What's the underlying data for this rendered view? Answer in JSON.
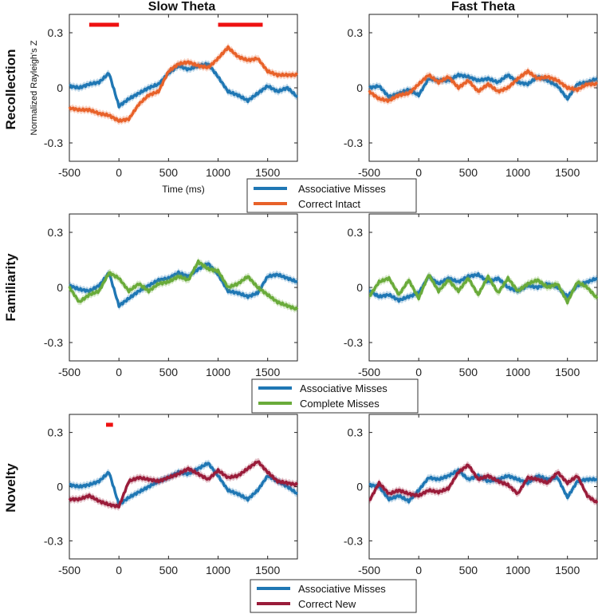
{
  "figure": {
    "column_titles": [
      "Slow Theta",
      "Fast Theta"
    ],
    "row_labels": [
      "Recollection",
      "Familiarity",
      "Novelty"
    ],
    "ylabel": "Normalized Rayleigh's Z",
    "xlabel": "Time (ms)"
  },
  "colors": {
    "associative_misses": "#1f77b4",
    "correct_intact": "#e8622a",
    "complete_misses": "#6aab3a",
    "correct_new": "#9a1c3a",
    "significance": "#ee1111"
  },
  "legends": [
    {
      "entries": [
        {
          "label": "Associative Misses",
          "color": "#1f77b4"
        },
        {
          "label": "Correct Intact",
          "color": "#e8622a"
        }
      ]
    },
    {
      "entries": [
        {
          "label": "Associative Misses",
          "color": "#1f77b4"
        },
        {
          "label": "Complete Misses",
          "color": "#6aab3a"
        }
      ]
    },
    {
      "entries": [
        {
          "label": "Associative Misses",
          "color": "#1f77b4"
        },
        {
          "label": "Correct New",
          "color": "#9a1c3a"
        }
      ]
    }
  ],
  "chart_data": [
    {
      "type": "line",
      "row": "Recollection",
      "column": "Slow Theta",
      "xlim": [
        -500,
        1800
      ],
      "ylim": [
        -0.4,
        0.4
      ],
      "xticks": [
        -500,
        0,
        500,
        1000,
        1500
      ],
      "yticks": [
        -0.3,
        0,
        0.3
      ],
      "ytick_labels": [
        "-0.3",
        "0",
        "0.3"
      ],
      "significance_bars": [
        [
          -300,
          0
        ],
        [
          1000,
          1450
        ]
      ],
      "series": [
        {
          "name": "Associative Misses",
          "color": "#1f77b4",
          "x": [
            -500,
            -400,
            -300,
            -200,
            -100,
            0,
            100,
            200,
            300,
            400,
            500,
            600,
            700,
            800,
            900,
            1000,
            1100,
            1200,
            1300,
            1400,
            1500,
            1600,
            1700,
            1800
          ],
          "y": [
            0.01,
            0.0,
            0.02,
            0.03,
            0.08,
            -0.1,
            -0.06,
            -0.03,
            0.0,
            0.02,
            0.08,
            0.12,
            0.1,
            0.12,
            0.13,
            0.06,
            -0.02,
            -0.04,
            -0.07,
            -0.03,
            0.01,
            -0.02,
            0.0,
            -0.05
          ]
        },
        {
          "name": "Correct Intact",
          "color": "#e8622a",
          "x": [
            -500,
            -400,
            -300,
            -200,
            -100,
            0,
            100,
            200,
            300,
            400,
            500,
            600,
            700,
            800,
            900,
            1000,
            1100,
            1200,
            1300,
            1400,
            1500,
            1600,
            1700,
            1800
          ],
          "y": [
            -0.11,
            -0.12,
            -0.12,
            -0.14,
            -0.15,
            -0.18,
            -0.17,
            -0.09,
            -0.04,
            -0.02,
            0.09,
            0.13,
            0.14,
            0.12,
            0.11,
            0.16,
            0.22,
            0.17,
            0.15,
            0.16,
            0.09,
            0.07,
            0.07,
            0.07
          ]
        }
      ]
    },
    {
      "type": "line",
      "row": "Recollection",
      "column": "Fast Theta",
      "xlim": [
        -500,
        1800
      ],
      "ylim": [
        -0.4,
        0.4
      ],
      "xticks": [
        -500,
        0,
        500,
        1000,
        1500
      ],
      "yticks": [
        -0.3,
        0,
        0.3
      ],
      "ytick_labels": [
        "-0.3",
        "0",
        "0.3"
      ],
      "significance_bars": [],
      "series": [
        {
          "name": "Associative Misses",
          "color": "#1f77b4",
          "x": [
            -500,
            -400,
            -300,
            -200,
            -100,
            0,
            100,
            200,
            300,
            400,
            500,
            600,
            700,
            800,
            900,
            1000,
            1100,
            1200,
            1300,
            1400,
            1500,
            1600,
            1700,
            1800
          ],
          "y": [
            0.0,
            0.01,
            -0.05,
            -0.03,
            -0.01,
            -0.04,
            0.05,
            0.04,
            0.04,
            0.07,
            0.06,
            0.04,
            0.05,
            0.03,
            0.07,
            0.03,
            0.02,
            0.06,
            0.04,
            0.01,
            -0.06,
            0.02,
            0.03,
            0.05
          ]
        },
        {
          "name": "Correct Intact",
          "color": "#e8622a",
          "x": [
            -500,
            -400,
            -300,
            -200,
            -100,
            0,
            100,
            200,
            300,
            400,
            500,
            600,
            700,
            800,
            900,
            1000,
            1100,
            1200,
            1300,
            1400,
            1500,
            1600,
            1700,
            1800
          ],
          "y": [
            -0.02,
            -0.06,
            -0.07,
            -0.04,
            -0.03,
            0.02,
            0.07,
            0.03,
            0.06,
            0.0,
            0.04,
            -0.02,
            0.02,
            -0.02,
            0.0,
            0.05,
            0.09,
            0.05,
            0.06,
            0.04,
            0.0,
            -0.01,
            0.02,
            0.02
          ]
        }
      ]
    },
    {
      "type": "line",
      "row": "Familiarity",
      "column": "Slow Theta",
      "xlim": [
        -500,
        1800
      ],
      "ylim": [
        -0.4,
        0.4
      ],
      "xticks": [
        -500,
        0,
        500,
        1000,
        1500
      ],
      "yticks": [
        -0.3,
        0,
        0.3
      ],
      "ytick_labels": [
        "-0.3",
        "0",
        "0.3"
      ],
      "significance_bars": [],
      "series": [
        {
          "name": "Associative Misses",
          "color": "#1f77b4",
          "x": [
            -500,
            -400,
            -300,
            -200,
            -100,
            0,
            100,
            200,
            300,
            400,
            500,
            600,
            700,
            800,
            900,
            1000,
            1100,
            1200,
            1300,
            1400,
            1500,
            1600,
            1700,
            1800
          ],
          "y": [
            0.01,
            -0.01,
            -0.02,
            0.01,
            0.08,
            -0.1,
            -0.06,
            -0.02,
            0.01,
            0.04,
            0.05,
            0.08,
            0.06,
            0.1,
            0.13,
            0.07,
            -0.02,
            -0.03,
            -0.05,
            -0.03,
            0.06,
            0.07,
            0.05,
            0.03
          ]
        },
        {
          "name": "Complete Misses",
          "color": "#6aab3a",
          "x": [
            -500,
            -400,
            -300,
            -200,
            -100,
            0,
            100,
            200,
            300,
            400,
            500,
            600,
            700,
            800,
            900,
            1000,
            1100,
            1200,
            1300,
            1400,
            1500,
            1600,
            1700,
            1800
          ],
          "y": [
            0.0,
            -0.08,
            -0.04,
            -0.02,
            0.08,
            0.05,
            -0.02,
            0.02,
            -0.02,
            0.02,
            0.03,
            0.06,
            0.04,
            0.14,
            0.1,
            0.09,
            0.0,
            0.02,
            0.06,
            0.0,
            -0.04,
            -0.08,
            -0.1,
            -0.12
          ]
        }
      ]
    },
    {
      "type": "line",
      "row": "Familiarity",
      "column": "Fast Theta",
      "xlim": [
        -500,
        1800
      ],
      "ylim": [
        -0.4,
        0.4
      ],
      "xticks": [
        -500,
        0,
        500,
        1000,
        1500
      ],
      "yticks": [
        -0.3,
        0,
        0.3
      ],
      "ytick_labels": [
        "-0.3",
        "0",
        "0.3"
      ],
      "significance_bars": [],
      "series": [
        {
          "name": "Associative Misses",
          "color": "#1f77b4",
          "x": [
            -500,
            -400,
            -300,
            -200,
            -100,
            0,
            100,
            200,
            300,
            400,
            500,
            600,
            700,
            800,
            900,
            1000,
            1100,
            1200,
            1300,
            1400,
            1500,
            1600,
            1700,
            1800
          ],
          "y": [
            -0.02,
            -0.05,
            -0.04,
            -0.07,
            -0.05,
            -0.03,
            0.06,
            0.02,
            0.05,
            0.03,
            0.06,
            0.07,
            0.03,
            0.05,
            0.0,
            -0.02,
            0.01,
            0.0,
            0.02,
            0.0,
            -0.05,
            0.01,
            0.03,
            0.05
          ]
        },
        {
          "name": "Complete Misses",
          "color": "#6aab3a",
          "x": [
            -500,
            -400,
            -300,
            -200,
            -100,
            0,
            100,
            200,
            300,
            400,
            500,
            600,
            700,
            800,
            900,
            1000,
            1100,
            1200,
            1300,
            1400,
            1500,
            1600,
            1700,
            1800
          ],
          "y": [
            -0.05,
            0.03,
            0.05,
            -0.04,
            0.04,
            -0.06,
            0.07,
            -0.02,
            0.04,
            -0.02,
            0.05,
            -0.04,
            0.06,
            -0.03,
            0.05,
            -0.02,
            0.02,
            0.04,
            0.0,
            0.02,
            -0.08,
            0.03,
            0.0,
            -0.06
          ]
        }
      ]
    },
    {
      "type": "line",
      "row": "Novelty",
      "column": "Slow Theta",
      "xlim": [
        -500,
        1800
      ],
      "ylim": [
        -0.4,
        0.4
      ],
      "xticks": [
        -500,
        0,
        500,
        1000,
        1500
      ],
      "yticks": [
        -0.3,
        0,
        0.3
      ],
      "ytick_labels": [
        "-0.3",
        "0",
        "0.3"
      ],
      "significance_bars": [
        [
          -130,
          -60
        ]
      ],
      "series": [
        {
          "name": "Associative Misses",
          "color": "#1f77b4",
          "x": [
            -500,
            -400,
            -300,
            -200,
            -100,
            0,
            100,
            200,
            300,
            400,
            500,
            600,
            700,
            800,
            900,
            1000,
            1100,
            1200,
            1300,
            1400,
            1500,
            1600,
            1700,
            1800
          ],
          "y": [
            0.01,
            0.0,
            0.01,
            0.03,
            0.08,
            -0.1,
            -0.06,
            -0.03,
            0.0,
            0.03,
            0.05,
            0.08,
            0.07,
            0.1,
            0.13,
            0.06,
            -0.02,
            -0.04,
            -0.07,
            -0.02,
            0.06,
            0.03,
            0.0,
            -0.04
          ]
        },
        {
          "name": "Correct New",
          "color": "#9a1c3a",
          "x": [
            -500,
            -400,
            -300,
            -200,
            -100,
            0,
            100,
            200,
            300,
            400,
            500,
            600,
            700,
            800,
            900,
            1000,
            1100,
            1200,
            1300,
            1400,
            1500,
            1600,
            1700,
            1800
          ],
          "y": [
            -0.07,
            -0.07,
            -0.05,
            -0.08,
            -0.1,
            -0.11,
            0.03,
            0.05,
            0.04,
            0.03,
            0.05,
            0.07,
            0.1,
            0.07,
            0.04,
            0.09,
            0.05,
            0.06,
            0.1,
            0.14,
            0.08,
            0.03,
            0.02,
            0.01
          ]
        }
      ]
    },
    {
      "type": "line",
      "row": "Novelty",
      "column": "Fast Theta",
      "xlim": [
        -500,
        1800
      ],
      "ylim": [
        -0.4,
        0.4
      ],
      "xticks": [
        -500,
        0,
        500,
        1000,
        1500
      ],
      "yticks": [
        -0.3,
        0,
        0.3
      ],
      "ytick_labels": [
        "-0.3",
        "0",
        "0.3"
      ],
      "significance_bars": [],
      "series": [
        {
          "name": "Associative Misses",
          "color": "#1f77b4",
          "x": [
            -500,
            -400,
            -300,
            -200,
            -100,
            0,
            100,
            200,
            300,
            400,
            500,
            600,
            700,
            800,
            900,
            1000,
            1100,
            1200,
            1300,
            1400,
            1500,
            1600,
            1700,
            1800
          ],
          "y": [
            0.01,
            0.0,
            -0.07,
            -0.05,
            -0.08,
            -0.02,
            0.05,
            0.04,
            0.06,
            0.09,
            0.04,
            0.06,
            0.03,
            0.04,
            0.06,
            0.04,
            0.02,
            0.06,
            0.04,
            0.05,
            -0.06,
            0.03,
            0.04,
            0.04
          ]
        },
        {
          "name": "Correct New",
          "color": "#9a1c3a",
          "x": [
            -500,
            -400,
            -300,
            -200,
            -100,
            0,
            100,
            200,
            300,
            400,
            500,
            600,
            700,
            800,
            900,
            1000,
            1100,
            1200,
            1300,
            1400,
            1500,
            1600,
            1700,
            1800
          ],
          "y": [
            -0.08,
            0.02,
            -0.04,
            -0.02,
            -0.04,
            -0.05,
            -0.02,
            -0.03,
            -0.01,
            0.08,
            0.12,
            0.04,
            0.06,
            0.03,
            0.01,
            -0.04,
            0.05,
            0.04,
            0.02,
            0.08,
            0.02,
            0.06,
            -0.05,
            -0.09
          ]
        }
      ]
    }
  ]
}
